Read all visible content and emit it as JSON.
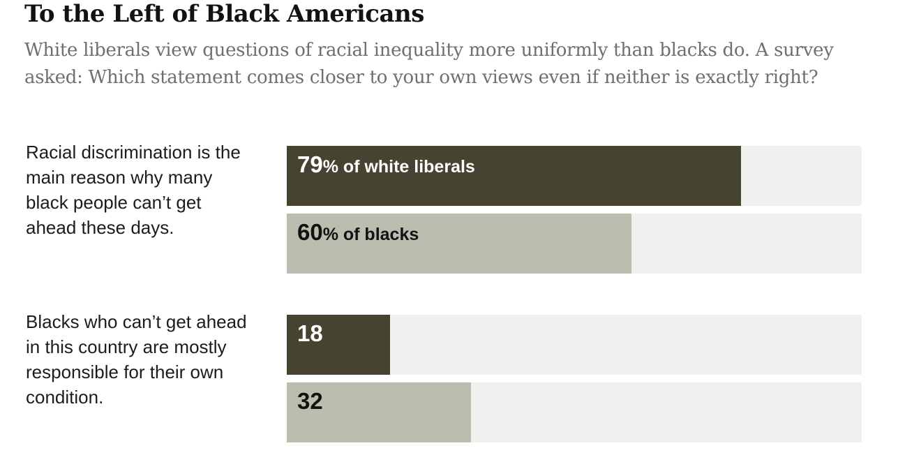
{
  "title": "To the Left of Black Americans",
  "subtitle": "White liberals view questions of racial inequality more uniformly than blacks do. A survey asked: Which statement comes closer to your own views even if neither is exactly right?",
  "colors": {
    "white_liberals": "#464331",
    "blacks": "#bcbcaf",
    "track": "#f0f0ee",
    "label_on_dark": "#ffffff",
    "label_on_light": "#121212"
  },
  "chart_data": {
    "type": "bar",
    "orientation": "horizontal",
    "xlim": [
      0,
      100
    ],
    "unit": "%",
    "categories": [
      "Racial discrimination is the main reason why many black people can’t get ahead these days.",
      "Blacks who can’t get ahead in this country are mostly responsible for their own condition."
    ],
    "series": [
      {
        "name": "white liberals",
        "values": [
          79,
          18
        ],
        "value_labels": [
          "79",
          "18"
        ],
        "label_suffixes": [
          "% of white liberals",
          ""
        ]
      },
      {
        "name": "blacks",
        "values": [
          60,
          32
        ],
        "value_labels": [
          "60",
          "32"
        ],
        "label_suffixes": [
          "% of blacks",
          ""
        ]
      }
    ]
  }
}
